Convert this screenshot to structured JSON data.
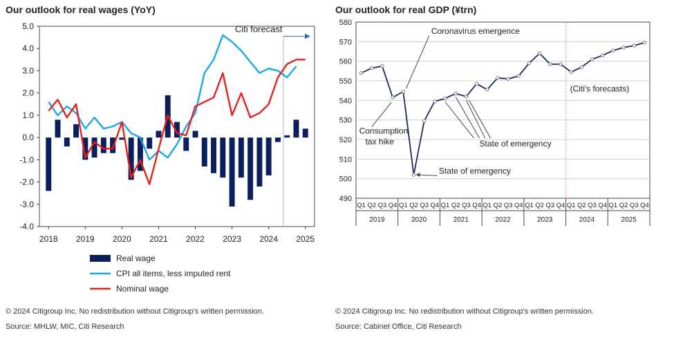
{
  "left": {
    "title": "Our outlook for real wages (YoY)",
    "copyright": "© 2024 Citigroup Inc. No redistribution without Citigroup's written permission.",
    "source": "Source: MHLW, MIC, Citi Research",
    "forecast_label": "Citi forecast",
    "colors": {
      "bar": "#0a1f5c",
      "cpi": "#1aa7e8",
      "nominal": "#e8201c",
      "forecast_line": "#9bb6d9"
    },
    "chart_data": {
      "type": "bar+line",
      "x_start": 2018.0,
      "x_step": 0.25,
      "x_ticks": [
        "2018",
        "2019",
        "2020",
        "2021",
        "2022",
        "2023",
        "2024",
        "2025"
      ],
      "ylim": [
        -4.0,
        5.0
      ],
      "y_ticks": [
        "5.0",
        "4.0",
        "3.0",
        "2.0",
        "1.0",
        "0.0",
        "-1.0",
        "-2.0",
        "-3.0",
        "-4.0"
      ],
      "forecast_start": 2024.4,
      "series": [
        {
          "name": "Real wage",
          "kind": "bar",
          "values": [
            -2.4,
            0.8,
            -0.4,
            0.6,
            -1.0,
            -0.9,
            -0.7,
            -0.7,
            -0.1,
            -1.9,
            -1.5,
            -0.5,
            0.3,
            1.9,
            0.7,
            -0.6,
            0.3,
            -1.3,
            -1.6,
            -1.8,
            -3.1,
            -1.8,
            -2.8,
            -2.2,
            -1.7,
            -0.2,
            0.1,
            0.8,
            0.4
          ]
        },
        {
          "name": "CPI all items, less imputed rent",
          "kind": "line",
          "values": [
            1.6,
            1.0,
            1.4,
            1.1,
            0.4,
            0.9,
            0.4,
            0.5,
            0.7,
            0.2,
            0.0,
            -1.0,
            -0.6,
            -0.9,
            -0.3,
            0.5,
            1.1,
            2.9,
            3.5,
            4.6,
            4.3,
            3.9,
            3.4,
            2.9,
            3.1,
            3.0,
            2.7,
            3.2
          ]
        },
        {
          "name": "Nominal wage",
          "kind": "line",
          "values": [
            1.2,
            1.7,
            0.9,
            1.5,
            -0.9,
            -0.2,
            -0.5,
            -0.5,
            0.7,
            -1.8,
            -1.0,
            -2.1,
            -0.5,
            1.0,
            0.2,
            0.1,
            1.4,
            1.6,
            1.8,
            2.9,
            1.0,
            2.0,
            0.9,
            1.1,
            1.5,
            2.7,
            3.3,
            3.5,
            3.5
          ]
        }
      ]
    }
  },
  "right": {
    "title": "Our outlook for real GDP (¥trn)",
    "copyright": "© 2024 Citigroup Inc. No redistribution without Citigroup's written permission.",
    "source": "Source: Cabinet Office, Citi Research",
    "colors": {
      "line": "#1a2a5c",
      "marker": "#ffffff",
      "forecast_line": "#e8a0a0",
      "grid": "#d0d0d0"
    },
    "annotations": {
      "corona": "Coronavirus emergence",
      "tax1": "Consumption",
      "tax2": "tax hike",
      "soe1": "State of emergency",
      "soe2": "State of emergency",
      "forecast": "(Citi's forecasts)"
    },
    "chart_data": {
      "type": "line",
      "quarters": [
        "Q1",
        "Q2",
        "Q3",
        "Q4"
      ],
      "years": [
        "2019",
        "2020",
        "2021",
        "2022",
        "2023",
        "2024",
        "2025"
      ],
      "ylim": [
        490,
        580
      ],
      "y_ticks": [
        "580",
        "570",
        "560",
        "550",
        "540",
        "530",
        "520",
        "510",
        "500",
        "490"
      ],
      "forecast_start_index": 20,
      "series": [
        {
          "name": "Real GDP",
          "values": [
            554.0,
            556.5,
            557.5,
            541.5,
            544.5,
            502.0,
            529.5,
            539.5,
            541.0,
            543.5,
            542.0,
            548.5,
            545.5,
            551.5,
            551.0,
            552.5,
            559.0,
            564.0,
            558.5,
            558.5,
            554.5,
            557.0,
            561.0,
            563.0,
            565.5,
            567.0,
            568.0,
            569.5
          ]
        }
      ]
    }
  }
}
